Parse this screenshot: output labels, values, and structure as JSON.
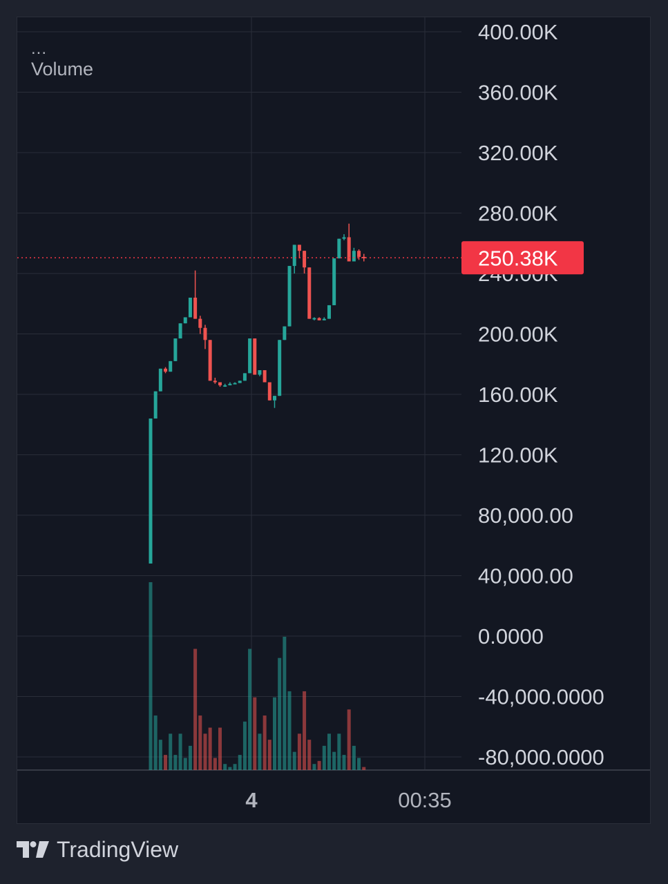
{
  "legend": {
    "menu_dots": "...",
    "indicator_label": "Volume"
  },
  "branding": {
    "logo_icon": "tradingview-logo-icon",
    "name": "TradingView"
  },
  "colors": {
    "up": "#26a69a",
    "down": "#ef5350",
    "price_line": "#f23645",
    "price_tag_bg": "#f23645",
    "grid": "#2a2e39"
  },
  "chart_data": {
    "type": "candlestick",
    "price_axis": {
      "ticks": [
        "400.00K",
        "360.00K",
        "320.00K",
        "280.00K",
        "240.00K",
        "200.00K",
        "160.00K",
        "120.00K",
        "80,000.00",
        "40,000.00",
        "0.0000",
        "-40,000.0000",
        "-80,000.0000"
      ]
    },
    "time_axis": {
      "ticks": [
        "4",
        "00:35"
      ]
    },
    "last_price_label": "250.38K",
    "last_price": 250380,
    "candles": [
      [
        48000,
        144000,
        48000,
        144000
      ],
      [
        144000,
        162000,
        144000,
        162000
      ],
      [
        162000,
        177000,
        162000,
        177000
      ],
      [
        177000,
        175000,
        174000,
        178000
      ],
      [
        175000,
        182000,
        175000,
        182000
      ],
      [
        182000,
        197000,
        182000,
        197000
      ],
      [
        197000,
        207000,
        197000,
        207000
      ],
      [
        207000,
        211000,
        207000,
        211000
      ],
      [
        211000,
        224000,
        211000,
        224000
      ],
      [
        224000,
        210000,
        210000,
        242000
      ],
      [
        210000,
        204000,
        200000,
        212000
      ],
      [
        204000,
        196000,
        190000,
        206000
      ],
      [
        196000,
        169000,
        169000,
        196000
      ],
      [
        169000,
        168000,
        167000,
        171000
      ],
      [
        168000,
        166000,
        165000,
        168000
      ],
      [
        166000,
        166000,
        165000,
        167000
      ],
      [
        166000,
        167000,
        166000,
        168000
      ],
      [
        167000,
        167500,
        167000,
        168000
      ],
      [
        167500,
        169000,
        167500,
        169000
      ],
      [
        169000,
        174000,
        169000,
        174000
      ],
      [
        174000,
        197000,
        174000,
        197000
      ],
      [
        197000,
        173000,
        173000,
        197000
      ],
      [
        173000,
        176000,
        172000,
        176000
      ],
      [
        176000,
        168000,
        168000,
        176000
      ],
      [
        168000,
        156000,
        156000,
        168000
      ],
      [
        156000,
        159000,
        151000,
        159000
      ],
      [
        159000,
        196000,
        159000,
        196000
      ],
      [
        196000,
        205000,
        196000,
        205000
      ],
      [
        205000,
        245000,
        205000,
        245000
      ],
      [
        245000,
        259000,
        240000,
        259000
      ],
      [
        259000,
        255000,
        250000,
        259000
      ],
      [
        255000,
        244000,
        240000,
        255000
      ],
      [
        244000,
        210000,
        210000,
        244000
      ],
      [
        210000,
        210500,
        209000,
        211000
      ],
      [
        210500,
        209000,
        209000,
        211000
      ],
      [
        209000,
        210000,
        209000,
        211000
      ],
      [
        210000,
        219000,
        210000,
        219000
      ],
      [
        219000,
        250000,
        219000,
        250000
      ],
      [
        250000,
        263000,
        250000,
        263000
      ],
      [
        263000,
        264000,
        262000,
        266000
      ],
      [
        264000,
        248000,
        248000,
        273000
      ],
      [
        248000,
        255000,
        248000,
        257000
      ],
      [
        255000,
        251000,
        249000,
        256000
      ],
      [
        251000,
        250380,
        248000,
        253000
      ]
    ],
    "volume": {
      "values": [
        31000,
        9000,
        5000,
        2500,
        6000,
        2500,
        6000,
        2000,
        4000,
        20000,
        9000,
        6000,
        7000,
        2000,
        7000,
        1000,
        500,
        1000,
        2500,
        8000,
        20000,
        12000,
        6000,
        9000,
        5000,
        12000,
        18500,
        22000,
        13000,
        3000,
        6000,
        13000,
        5000,
        1000,
        1500,
        4000,
        6000,
        3000,
        6000,
        2500,
        10000,
        4000,
        2000,
        500
      ],
      "direction": [
        "up",
        "up",
        "up",
        "down",
        "up",
        "up",
        "up",
        "up",
        "up",
        "down",
        "down",
        "down",
        "down",
        "down",
        "down",
        "up",
        "up",
        "up",
        "up",
        "up",
        "up",
        "down",
        "up",
        "down",
        "down",
        "up",
        "up",
        "up",
        "up",
        "up",
        "down",
        "down",
        "down",
        "up",
        "down",
        "up",
        "up",
        "up",
        "up",
        "up",
        "down",
        "up",
        "up",
        "down"
      ]
    }
  }
}
